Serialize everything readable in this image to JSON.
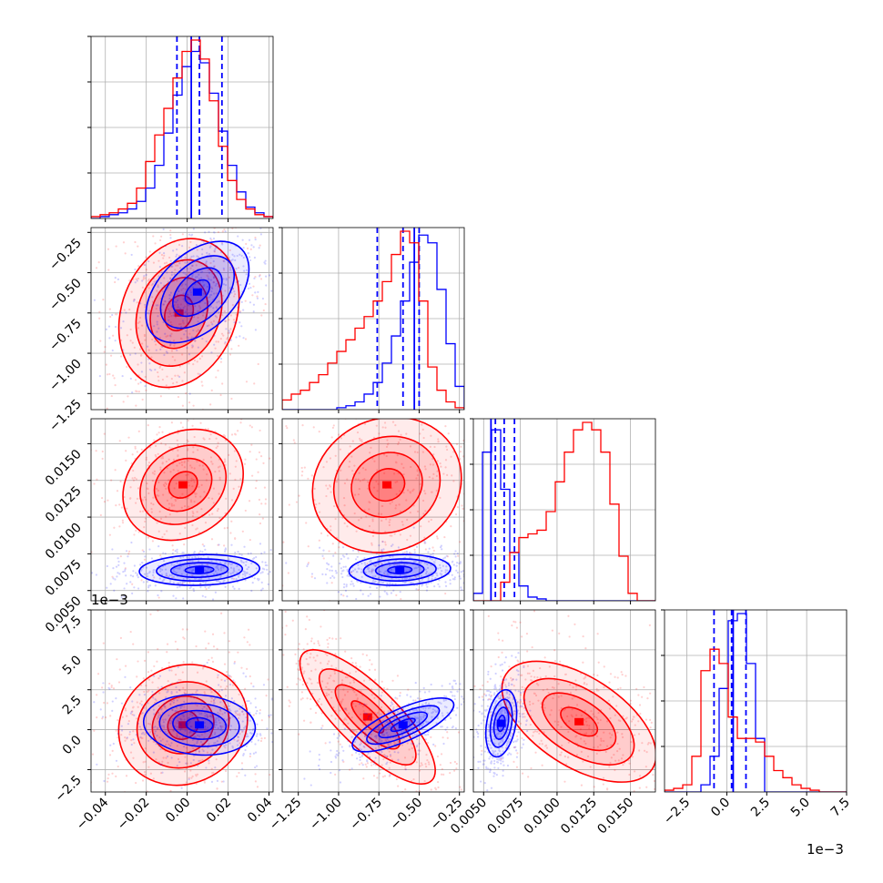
{
  "figure": {
    "type": "corner-plot"
  },
  "colors": {
    "series_a": "#0000ff",
    "series_b": "#ff0000",
    "grid": "#b0b0b0",
    "axes": "#000000"
  },
  "chart_data": {
    "type": "corner",
    "n_params": 4,
    "param_ranges": [
      [
        -0.047,
        0.042
      ],
      [
        -1.35,
        -0.22
      ],
      [
        0.0043,
        0.0167
      ],
      [
        -0.0039,
        0.0075
      ]
    ],
    "ticks": [
      [
        -0.04,
        -0.02,
        0.0,
        0.02,
        0.04
      ],
      [
        -1.25,
        -1.0,
        -0.75,
        -0.5,
        -0.25
      ],
      [
        0.005,
        0.0075,
        0.01,
        0.0125,
        0.015
      ],
      [
        -0.0025,
        0.0,
        0.0025,
        0.005,
        0.0075
      ]
    ],
    "tick_labels": [
      [
        "−0.04",
        "−0.02",
        "0.00",
        "0.02",
        "0.04"
      ],
      [
        "−1.25",
        "−1.00",
        "−0.75",
        "−0.50",
        "−0.25"
      ],
      [
        "0.0050",
        "0.0075",
        "0.0100",
        "0.0125",
        "0.0150"
      ],
      [
        "−2.5",
        "0.0",
        "2.5",
        "5.0",
        "7.5"
      ]
    ],
    "offset_labels": {
      "x3": "1e−3",
      "y3": "1e−3"
    },
    "grid": true,
    "series": [
      {
        "name": "",
        "color": "#0000ff",
        "quantiles": [
          [
            -0.005,
            0.006,
            0.017
          ],
          [
            -0.76,
            -0.6,
            -0.5
          ],
          [
            0.0058,
            0.0064,
            0.0071
          ],
          [
            -0.0008,
            0.0003,
            0.0012
          ]
        ],
        "truth": [
          0.002,
          -0.53,
          0.0055,
          0.0004
        ],
        "histograms": [
          [
            0,
            1,
            2,
            3,
            5,
            9,
            16,
            28,
            45,
            65,
            80,
            88,
            82,
            66,
            46,
            28,
            14,
            6,
            3,
            1
          ],
          [
            0,
            0,
            0,
            0,
            0,
            0,
            1,
            2,
            4,
            8,
            14,
            24,
            38,
            56,
            76,
            90,
            86,
            62,
            34,
            12
          ],
          [
            4,
            80,
            92,
            60,
            26,
            8,
            2,
            1,
            0,
            0,
            0,
            0,
            0,
            0,
            0,
            0,
            0,
            0,
            0,
            0
          ],
          [
            0,
            0,
            0,
            0,
            4,
            20,
            58,
            96,
            100,
            72,
            30,
            0,
            0,
            0,
            0,
            0,
            0,
            0,
            0,
            0
          ]
        ],
        "gaussian2d": [
          {
            "i": 1,
            "j": 0,
            "mx": 0.005,
            "my": -0.62,
            "sx": 0.012,
            "sy": 0.15,
            "rho": 0.45
          },
          {
            "i": 2,
            "j": 0,
            "mx": 0.006,
            "my": 0.0064,
            "sx": 0.014,
            "sy": 0.0005,
            "rho": 0.1
          },
          {
            "i": 2,
            "j": 1,
            "mx": -0.62,
            "my": 0.0064,
            "sx": 0.15,
            "sy": 0.0005,
            "rho": 0.1
          },
          {
            "i": 3,
            "j": 0,
            "mx": 0.006,
            "my": 0.0003,
            "sx": 0.013,
            "sy": 0.0009,
            "rho": -0.1
          },
          {
            "i": 3,
            "j": 1,
            "mx": -0.6,
            "my": 0.0003,
            "sx": 0.15,
            "sy": 0.0008,
            "rho": 0.75
          },
          {
            "i": 3,
            "j": 2,
            "mx": 0.0062,
            "my": 0.0004,
            "sx": 0.0005,
            "sy": 0.001,
            "rho": 0.3
          }
        ]
      },
      {
        "name": "",
        "color": "#ff0000",
        "histograms": [
          [
            1,
            2,
            3,
            5,
            8,
            16,
            30,
            44,
            58,
            74,
            88,
            94,
            84,
            62,
            38,
            20,
            10,
            5,
            2,
            1
          ],
          [
            5,
            8,
            10,
            14,
            18,
            24,
            30,
            36,
            42,
            48,
            56,
            66,
            80,
            92,
            86,
            56,
            22,
            10,
            4,
            1
          ],
          [
            0,
            0,
            0,
            10,
            26,
            34,
            36,
            38,
            48,
            64,
            80,
            92,
            96,
            92,
            80,
            52,
            24,
            4,
            0,
            0
          ],
          [
            1,
            2,
            4,
            20,
            68,
            80,
            72,
            42,
            30,
            30,
            28,
            20,
            12,
            8,
            4,
            2,
            1,
            0,
            0,
            0
          ]
        ],
        "gaussian2d": [
          {
            "i": 1,
            "j": 0,
            "mx": -0.004,
            "my": -0.75,
            "sx": 0.014,
            "sy": 0.22,
            "rho": 0.2
          },
          {
            "i": 2,
            "j": 0,
            "mx": -0.002,
            "my": 0.0122,
            "sx": 0.014,
            "sy": 0.0018,
            "rho": 0.2
          },
          {
            "i": 2,
            "j": 1,
            "mx": -0.7,
            "my": 0.0122,
            "sx": 0.22,
            "sy": 0.0022,
            "rho": 0.1
          },
          {
            "i": 3,
            "j": 0,
            "mx": -0.002,
            "my": 0.0003,
            "sx": 0.015,
            "sy": 0.0018,
            "rho": 0.1
          },
          {
            "i": 3,
            "j": 1,
            "mx": -0.82,
            "my": 0.0008,
            "sx": 0.2,
            "sy": 0.002,
            "rho": -0.8
          },
          {
            "i": 3,
            "j": 2,
            "mx": 0.0115,
            "my": 0.0005,
            "sx": 0.0025,
            "sy": 0.0018,
            "rho": -0.55
          }
        ]
      }
    ]
  }
}
